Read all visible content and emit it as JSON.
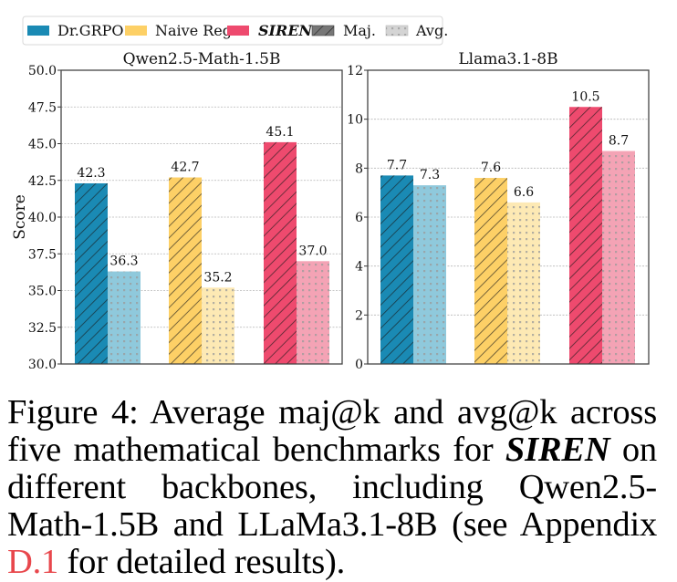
{
  "legend": {
    "items": [
      {
        "label": "Dr.GRPO",
        "kind": "color",
        "color": "#1a8ab4",
        "italic_bold": false
      },
      {
        "label": "Naive Reg",
        "kind": "color",
        "color": "#fdd066",
        "italic_bold": false
      },
      {
        "label": "SIREN",
        "kind": "color",
        "color": "#ee4a6e",
        "italic_bold": true
      },
      {
        "label": "Maj.",
        "kind": "hatch",
        "color": "#777777",
        "italic_bold": false
      },
      {
        "label": "Avg.",
        "kind": "dots",
        "color": "#cccccc",
        "italic_bold": false
      }
    ]
  },
  "caption": {
    "prefix": "Figure 4:  Average maj@k and avg@k across five mathematical benchmarks for ",
    "emph": "SIREN",
    "middle": " on different backbones, including Qwen2.5-Math-1.5B and LLaMa3.1-8B (see Appendix ",
    "ref": "D.1",
    "suffix": " for detailed results)."
  },
  "chart_data": [
    {
      "type": "bar",
      "title": "Qwen2.5-Math-1.5B",
      "xlabel": "",
      "ylabel": "Score",
      "ylim": [
        30.0,
        50.0
      ],
      "yticks": [
        "30.0",
        "32.5",
        "35.0",
        "37.5",
        "40.0",
        "42.5",
        "45.0",
        "47.5",
        "50.0"
      ],
      "grid": true,
      "categories": [
        "Dr.GRPO",
        "Naive Reg",
        "SIREN"
      ],
      "series": [
        {
          "name": "Maj.",
          "values": [
            42.3,
            42.7,
            45.1
          ],
          "labels": [
            "42.3",
            "42.7",
            "45.1"
          ]
        },
        {
          "name": "Avg.",
          "values": [
            36.3,
            35.2,
            37.0
          ],
          "labels": [
            "36.3",
            "35.2",
            "37.0"
          ]
        }
      ],
      "colors": {
        "maj": [
          "#1a8ab4",
          "#fdd066",
          "#ee4a6e"
        ],
        "avg": [
          "#8fc9dc",
          "#fde9b4",
          "#f4a3b5"
        ]
      }
    },
    {
      "type": "bar",
      "title": "Llama3.1-8B",
      "xlabel": "",
      "ylabel": "",
      "ylim": [
        0,
        12
      ],
      "yticks": [
        "0",
        "2",
        "4",
        "6",
        "8",
        "10",
        "12"
      ],
      "grid": true,
      "categories": [
        "Dr.GRPO",
        "Naive Reg",
        "SIREN"
      ],
      "series": [
        {
          "name": "Maj.",
          "values": [
            7.7,
            7.6,
            10.5
          ],
          "labels": [
            "7.7",
            "7.6",
            "10.5"
          ]
        },
        {
          "name": "Avg.",
          "values": [
            7.3,
            6.6,
            8.7
          ],
          "labels": [
            "7.3",
            "6.6",
            "8.7"
          ]
        }
      ],
      "colors": {
        "maj": [
          "#1a8ab4",
          "#fdd066",
          "#ee4a6e"
        ],
        "avg": [
          "#8fc9dc",
          "#fde9b4",
          "#f4a3b5"
        ]
      }
    }
  ]
}
